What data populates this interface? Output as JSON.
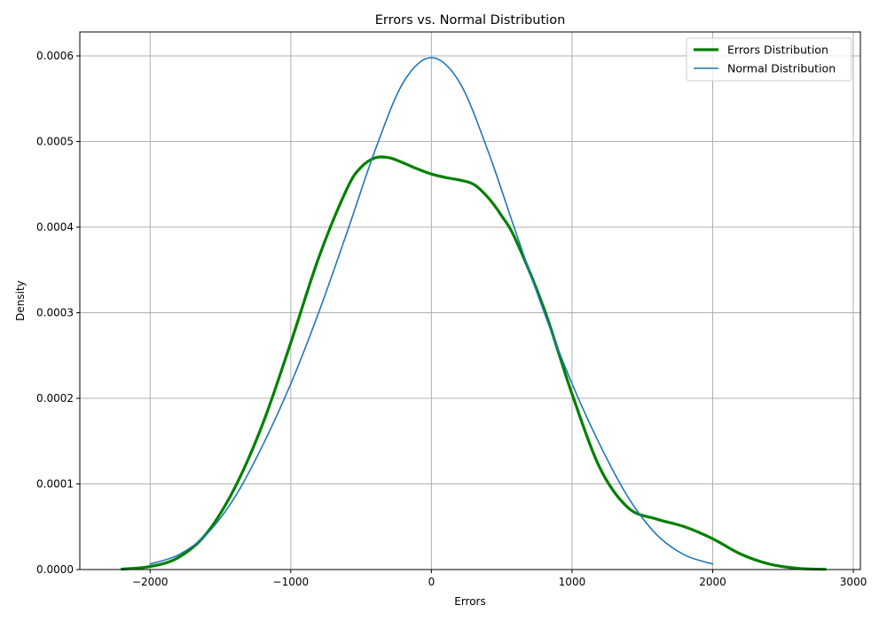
{
  "chart_data": {
    "type": "line",
    "title": "Errors vs. Normal Distribution",
    "xlabel": "Errors",
    "ylabel": "Density",
    "xlim": [
      -2500,
      3050
    ],
    "ylim": [
      0,
      0.000628
    ],
    "xticks": [
      -2000,
      -1000,
      0,
      1000,
      2000,
      3000
    ],
    "xtick_labels": [
      "−2000",
      "−1000",
      "0",
      "1000",
      "2000",
      "3000"
    ],
    "yticks": [
      0,
      0.0001,
      0.0002,
      0.0003,
      0.0004,
      0.0005,
      0.0006
    ],
    "ytick_labels": [
      "0.0000",
      "0.0001",
      "0.0002",
      "0.0003",
      "0.0004",
      "0.0005",
      "0.0006"
    ],
    "grid": true,
    "legend_position": "top-right",
    "series": [
      {
        "name": "Errors Distribution",
        "color": "#008000",
        "x": [
          -2200,
          -2000,
          -1800,
          -1600,
          -1400,
          -1200,
          -1000,
          -800,
          -600,
          -500,
          -400,
          -300,
          -200,
          -100,
          0,
          100,
          200,
          300,
          400,
          500,
          600,
          800,
          1000,
          1200,
          1400,
          1600,
          1800,
          2000,
          2200,
          2400,
          2600,
          2800
        ],
        "y": [
          5e-07,
          3.5e-06,
          1.4e-05,
          4.2e-05,
          9.5e-05,
          0.00017,
          0.000265,
          0.000365,
          0.000445,
          0.00047,
          0.000481,
          0.000481,
          0.000475,
          0.000468,
          0.000462,
          0.000458,
          0.000455,
          0.00045,
          0.000435,
          0.000413,
          0.000385,
          0.000305,
          0.000205,
          0.000118,
          7.2e-05,
          5.9e-05,
          5e-05,
          3.6e-05,
          1.8e-05,
          6.5e-06,
          1.5e-06,
          3e-07
        ]
      },
      {
        "name": "Normal Distribution",
        "color": "#1f77b4",
        "x": [
          -2000,
          -1800,
          -1600,
          -1400,
          -1200,
          -1000,
          -800,
          -600,
          -400,
          -200,
          0,
          200,
          400,
          600,
          800,
          1000,
          1200,
          1400,
          1600,
          1800,
          2000
        ],
        "y": [
          6.5e-06,
          1.7e-05,
          4.1e-05,
          8.4e-05,
          0.000145,
          0.000217,
          0.000301,
          0.000394,
          0.00049,
          0.000569,
          0.000598,
          0.000569,
          0.00049,
          0.000394,
          0.000301,
          0.000217,
          0.000145,
          8.4e-05,
          4.1e-05,
          1.7e-05,
          6.5e-06
        ]
      }
    ]
  }
}
